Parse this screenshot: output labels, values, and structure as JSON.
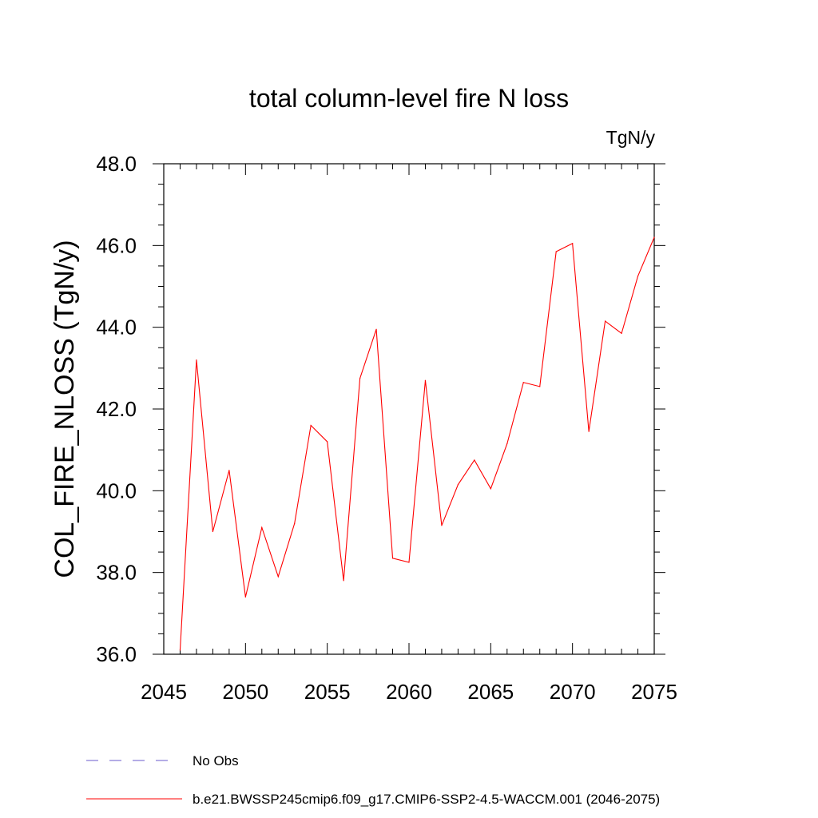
{
  "chart_data": {
    "type": "line",
    "title": "total column-level fire N loss",
    "units": "TgN/y",
    "xlabel": "",
    "ylabel": "COL_FIRE_NLOSS  (TgN/y)",
    "xlim": [
      2045,
      2075
    ],
    "ylim": [
      36.0,
      48.0
    ],
    "xticks": [
      2045,
      2050,
      2055,
      2060,
      2065,
      2070,
      2075
    ],
    "xtick_labels": [
      "2045",
      "2050",
      "2055",
      "2060",
      "2065",
      "2070",
      "2075"
    ],
    "yticks": [
      36,
      38,
      40,
      42,
      44,
      46,
      48
    ],
    "ytick_labels": [
      "36.0",
      "38.0",
      "40.0",
      "42.0",
      "44.0",
      "46.0",
      "48.0"
    ],
    "grid": false,
    "legend_position": "bottom-left",
    "legend": [
      {
        "label": "No Obs",
        "color": "#6a5acd",
        "style": "dashed"
      },
      {
        "label": "b.e21.BWSSP245cmip6.f09_g17.CMIP6-SSP2-4.5-WACCM.001 (2046-2075)",
        "color": "#ff0000",
        "style": "solid"
      }
    ],
    "series": [
      {
        "name": "b.e21.BWSSP245cmip6.f09_g17.CMIP6-SSP2-4.5-WACCM.001 (2046-2075)",
        "color": "#ff0000",
        "x": [
          2046,
          2047,
          2048,
          2049,
          2050,
          2051,
          2052,
          2053,
          2054,
          2055,
          2056,
          2057,
          2058,
          2059,
          2060,
          2061,
          2062,
          2063,
          2064,
          2065,
          2066,
          2067,
          2068,
          2069,
          2070,
          2071,
          2072,
          2073,
          2074,
          2075
        ],
        "y": [
          36.1,
          43.2,
          39.0,
          40.5,
          37.4,
          39.1,
          37.9,
          39.2,
          41.6,
          41.2,
          37.8,
          42.75,
          43.95,
          38.35,
          38.25,
          42.7,
          39.15,
          40.15,
          40.75,
          40.05,
          41.15,
          42.65,
          42.55,
          45.85,
          46.05,
          41.45,
          44.15,
          43.85,
          45.25,
          46.2
        ]
      }
    ]
  }
}
